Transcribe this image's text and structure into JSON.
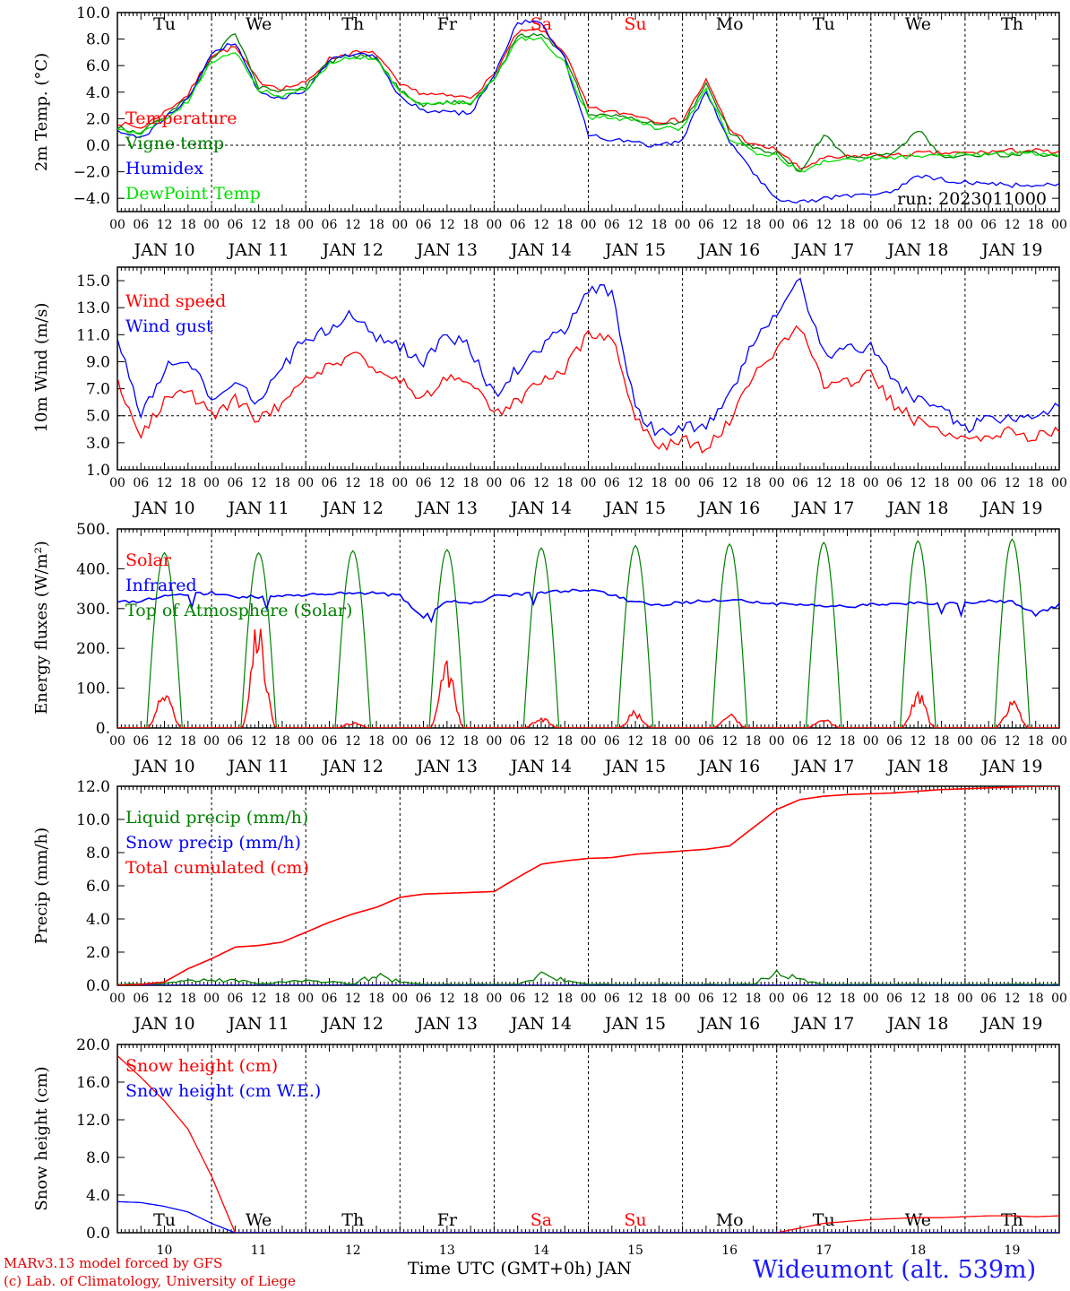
{
  "colors": {
    "red": "#ff0000",
    "green": "#008000",
    "blue": "#0000ff",
    "lime": "#00e000",
    "axis": "#000000"
  },
  "days": {
    "abbr": [
      "Tu",
      "We",
      "Th",
      "Fr",
      "Sa",
      "Su",
      "Mo",
      "Tu",
      "We",
      "Th"
    ],
    "abbr_colors": [
      "#000000",
      "#000000",
      "#000000",
      "#000000",
      "#ff0000",
      "#ff0000",
      "#000000",
      "#000000",
      "#000000",
      "#000000"
    ],
    "dates": [
      "JAN 10",
      "JAN 11",
      "JAN 12",
      "JAN 13",
      "JAN 14",
      "JAN 15",
      "JAN 16",
      "JAN 17",
      "JAN 18",
      "JAN 19"
    ],
    "day_numbers": [
      "10",
      "11",
      "12",
      "13",
      "14",
      "15",
      "16",
      "17",
      "18",
      "19"
    ],
    "hour_ticks": [
      "00",
      "06",
      "12",
      "18"
    ]
  },
  "footer": {
    "model_line": "MARv3.13 model forced by GFS",
    "lab_line": "(c) Lab. of Climatology, University of Liege",
    "xlabel": "Time UTC (GMT+0h) JAN",
    "station": "Wideumont (alt. 539m)"
  },
  "chart_data": [
    {
      "type": "line",
      "ylabel": "2m Temp. (°C)",
      "annotation": "run: 2023011000",
      "ylim": [
        -5,
        10
      ],
      "yticks": [
        "10.0",
        "8.0",
        "6.0",
        "4.0",
        "2.0",
        "0.0",
        "−2.0",
        "−4.0"
      ],
      "reference_line": 0,
      "x_hours": [
        0,
        6,
        12,
        18,
        24,
        30,
        36,
        42,
        48,
        54,
        60,
        66,
        72,
        78,
        84,
        90,
        96,
        102,
        108,
        114,
        120,
        126,
        132,
        138,
        144,
        150,
        156,
        162,
        168,
        174,
        180,
        186,
        192,
        198,
        204,
        210,
        216,
        222,
        228,
        234,
        240
      ],
      "series": [
        {
          "name": "Temperature",
          "color": "#ff0000",
          "values": [
            1.7,
            1.3,
            2.5,
            3.8,
            6.8,
            7.4,
            4.8,
            4.3,
            4.7,
            6.5,
            7.0,
            6.9,
            4.5,
            3.9,
            3.7,
            3.6,
            5.3,
            8.5,
            8.7,
            7.0,
            2.8,
            2.5,
            2.3,
            1.8,
            1.9,
            4.9,
            1.2,
            0.0,
            -0.3,
            -1.8,
            -1.0,
            -0.9,
            -0.7,
            -0.8,
            -0.6,
            -0.6,
            -0.6,
            -0.5,
            -0.4,
            -0.4,
            -0.6
          ]
        },
        {
          "name": "Vigne temp",
          "color": "#008000",
          "values": [
            1.3,
            1.0,
            2.2,
            3.5,
            6.5,
            8.5,
            4.4,
            4.0,
            4.4,
            6.3,
            6.8,
            6.5,
            4.1,
            3.0,
            3.3,
            3.2,
            5.0,
            8.2,
            8.4,
            6.8,
            2.3,
            2.2,
            2.0,
            1.5,
            1.6,
            4.6,
            1.0,
            -0.3,
            -0.5,
            -2.0,
            0.8,
            -1.0,
            -0.9,
            -0.5,
            1.2,
            -0.8,
            -0.8,
            -0.7,
            -0.7,
            -0.6,
            -0.8
          ]
        },
        {
          "name": "Humidex",
          "color": "#0000ff",
          "values": [
            1.0,
            0.5,
            2.0,
            3.5,
            7.0,
            7.8,
            4.0,
            3.5,
            4.2,
            6.4,
            6.9,
            6.6,
            3.6,
            2.6,
            2.5,
            2.4,
            5.3,
            9.3,
            9.2,
            6.5,
            0.8,
            0.4,
            0.2,
            -0.1,
            0.4,
            4.2,
            0.2,
            -2.0,
            -4.0,
            -4.3,
            -4.0,
            -3.8,
            -3.7,
            -3.5,
            -2.3,
            -2.6,
            -2.8,
            -2.9,
            -3.0,
            -3.0,
            -3.0
          ]
        },
        {
          "name": "DewPoint Temp",
          "color": "#00e000",
          "values": [
            1.2,
            0.8,
            2.0,
            3.3,
            6.3,
            7.0,
            4.2,
            3.7,
            4.2,
            6.2,
            6.6,
            6.5,
            3.9,
            3.1,
            3.2,
            3.2,
            4.9,
            8.0,
            8.0,
            6.2,
            2.1,
            2.1,
            1.8,
            1.2,
            1.3,
            4.2,
            0.5,
            -0.5,
            -0.8,
            -2.1,
            -1.2,
            -1.1,
            -1.0,
            -0.9,
            -0.8,
            -0.8,
            -0.7,
            -0.7,
            -0.6,
            -0.6,
            -0.8
          ]
        }
      ]
    },
    {
      "type": "line",
      "ylabel": "10m Wind (m/s)",
      "ylim": [
        1,
        16
      ],
      "yticks": [
        "15.0",
        "13.0",
        "11.0",
        "9.0",
        "7.0",
        "5.0",
        "3.0",
        "1.0"
      ],
      "reference_line": 5,
      "x_hours": [
        0,
        6,
        12,
        18,
        24,
        30,
        36,
        42,
        48,
        54,
        60,
        66,
        72,
        78,
        84,
        90,
        96,
        102,
        108,
        114,
        120,
        126,
        132,
        138,
        144,
        150,
        156,
        162,
        168,
        174,
        180,
        186,
        192,
        198,
        204,
        210,
        216,
        222,
        228,
        234,
        240
      ],
      "series": [
        {
          "name": "Wind speed",
          "color": "#ff0000",
          "values": [
            7.5,
            3.8,
            6.0,
            6.8,
            5.0,
            6.2,
            4.7,
            6.0,
            7.8,
            8.6,
            9.6,
            8.5,
            7.6,
            6.3,
            8.0,
            7.5,
            5.0,
            6.0,
            7.5,
            8.4,
            11.0,
            10.9,
            5.0,
            2.5,
            3.2,
            2.5,
            4.7,
            8.0,
            9.8,
            11.5,
            7.2,
            7.5,
            8.0,
            5.8,
            4.5,
            4.0,
            3.0,
            3.6,
            3.8,
            3.4,
            4.2
          ]
        },
        {
          "name": "Wind gust",
          "color": "#0000ff",
          "values": [
            10.8,
            5.0,
            8.5,
            9.3,
            6.2,
            7.8,
            6.0,
            8.5,
            10.8,
            11.3,
            12.6,
            10.8,
            10.2,
            9.0,
            11.0,
            10.0,
            6.5,
            8.5,
            10.0,
            11.5,
            14.4,
            14.2,
            5.5,
            3.5,
            4.3,
            4.0,
            6.5,
            10.5,
            12.5,
            15.0,
            9.5,
            10.0,
            10.0,
            7.5,
            6.2,
            5.5,
            4.0,
            4.8,
            5.0,
            4.8,
            6.0
          ]
        }
      ]
    },
    {
      "type": "line",
      "ylabel": "Energy fluxes (W/m²)",
      "ylim": [
        0,
        500
      ],
      "yticks": [
        "500.",
        "400.",
        "300.",
        "200.",
        "100.",
        "0."
      ],
      "solar_peaks": [
        110,
        290,
        15,
        170,
        30,
        45,
        40,
        25,
        100,
        70
      ],
      "toa_peaks": [
        440,
        440,
        445,
        448,
        452,
        458,
        462,
        466,
        470,
        474
      ],
      "infrared_x": [
        0,
        6,
        12,
        18,
        24,
        30,
        36,
        42,
        48,
        54,
        60,
        66,
        72,
        78,
        84,
        90,
        96,
        102,
        108,
        114,
        120,
        126,
        132,
        138,
        144,
        150,
        156,
        162,
        168,
        174,
        180,
        186,
        192,
        198,
        204,
        210,
        216,
        222,
        228,
        234,
        240
      ],
      "infrared_values": [
        315,
        320,
        330,
        335,
        340,
        330,
        330,
        330,
        335,
        338,
        340,
        338,
        332,
        280,
        320,
        310,
        330,
        335,
        340,
        345,
        345,
        335,
        315,
        310,
        315,
        320,
        320,
        318,
        312,
        310,
        305,
        305,
        310,
        312,
        315,
        310,
        315,
        318,
        318,
        285,
        310
      ],
      "series": [
        {
          "name": "Solar",
          "color": "#ff0000"
        },
        {
          "name": "Infrared",
          "color": "#0000ff"
        },
        {
          "name": "Top of Atmosphere (Solar)",
          "color": "#008000"
        }
      ]
    },
    {
      "type": "line",
      "ylabel": "Precip (mm/h)",
      "ylim": [
        0,
        12
      ],
      "yticks": [
        "12.0",
        "10.0",
        "8.0",
        "6.0",
        "4.0",
        "2.0",
        "0.0"
      ],
      "x_hours": [
        0,
        6,
        12,
        18,
        24,
        30,
        36,
        42,
        48,
        54,
        60,
        66,
        72,
        78,
        84,
        90,
        96,
        102,
        108,
        114,
        120,
        126,
        132,
        138,
        144,
        150,
        156,
        162,
        168,
        174,
        180,
        186,
        192,
        198,
        204,
        210,
        216,
        222,
        228,
        234,
        240
      ],
      "series": [
        {
          "name": "Liquid precip (mm/h)",
          "color": "#008000",
          "values": [
            0.05,
            0.1,
            0.1,
            0.3,
            0.3,
            0.3,
            0.1,
            0.2,
            0.25,
            0.2,
            0.1,
            0.6,
            0.2,
            0.05,
            0.05,
            0.05,
            0.05,
            0.05,
            0.6,
            0.3,
            0.05,
            0.05,
            0.05,
            0.05,
            0.05,
            0.05,
            0.05,
            0.05,
            0.8,
            0.3,
            0.05,
            0.05,
            0.05,
            0.05,
            0.05,
            0.05,
            0.05,
            0.05,
            0.05,
            0.05,
            0.05
          ]
        },
        {
          "name": "Snow precip (mm/h)",
          "color": "#0000ff",
          "values": [
            0,
            0,
            0,
            0,
            0,
            0,
            0,
            0,
            0,
            0,
            0,
            0,
            0,
            0,
            0,
            0,
            0,
            0,
            0,
            0,
            0,
            0,
            0,
            0,
            0,
            0,
            0,
            0,
            0,
            0,
            0,
            0,
            0,
            0,
            0,
            0,
            0,
            0,
            0,
            0,
            0
          ]
        },
        {
          "name": "Total cumulated (cm)",
          "color": "#ff0000",
          "values": [
            0.0,
            0.05,
            0.2,
            1.0,
            1.6,
            2.3,
            2.4,
            2.6,
            3.2,
            3.8,
            4.3,
            4.7,
            5.3,
            5.5,
            5.55,
            5.6,
            5.65,
            6.5,
            7.3,
            7.5,
            7.65,
            7.7,
            7.9,
            8.0,
            8.1,
            8.2,
            8.4,
            9.5,
            10.6,
            11.2,
            11.4,
            11.5,
            11.55,
            11.6,
            11.7,
            11.8,
            11.85,
            11.9,
            11.95,
            12.0,
            12.0
          ]
        }
      ]
    },
    {
      "type": "line",
      "ylabel": "Snow height (cm)",
      "ylim": [
        0,
        20
      ],
      "yticks": [
        "20.0",
        "16.0",
        "12.0",
        "8.0",
        "4.0",
        "0.0"
      ],
      "x_hours": [
        0,
        6,
        12,
        18,
        24,
        30,
        36,
        42,
        48,
        54,
        60,
        66,
        72,
        78,
        84,
        90,
        96,
        102,
        108,
        114,
        120,
        126,
        132,
        138,
        144,
        150,
        156,
        162,
        168,
        174,
        180,
        186,
        192,
        198,
        204,
        210,
        216,
        222,
        228,
        234,
        240
      ],
      "series": [
        {
          "name": "Snow height (cm)",
          "color": "#ff0000",
          "values": [
            18.8,
            16.5,
            14.0,
            11.0,
            6.0,
            0.0,
            0.0,
            0.0,
            0.0,
            0.0,
            0.0,
            0.0,
            0.0,
            0.0,
            0.0,
            0.0,
            0.0,
            0.0,
            0.0,
            0.0,
            0.0,
            0.0,
            0.0,
            0.0,
            0.0,
            0.0,
            0.0,
            0.0,
            0.0,
            0.5,
            1.0,
            1.2,
            1.4,
            1.5,
            1.6,
            1.6,
            1.7,
            1.8,
            1.8,
            1.7,
            1.8
          ]
        },
        {
          "name": "Snow height (cm W.E.)",
          "color": "#0000ff",
          "values": [
            3.3,
            3.2,
            2.8,
            2.2,
            1.0,
            0.0,
            0.0,
            0.0,
            0.0,
            0.0,
            0.0,
            0.0,
            0.0,
            0.0,
            0.0,
            0.0,
            0.0,
            0.0,
            0.0,
            0.0,
            0.0,
            0.0,
            0.0,
            0.0,
            0.0,
            0.0,
            0.0,
            0.0,
            0.0,
            0.0,
            0.0,
            0.0,
            0.0,
            0.0,
            0.0,
            0.0,
            0.0,
            0.0,
            0.0,
            0.0,
            0.0
          ]
        }
      ]
    }
  ]
}
